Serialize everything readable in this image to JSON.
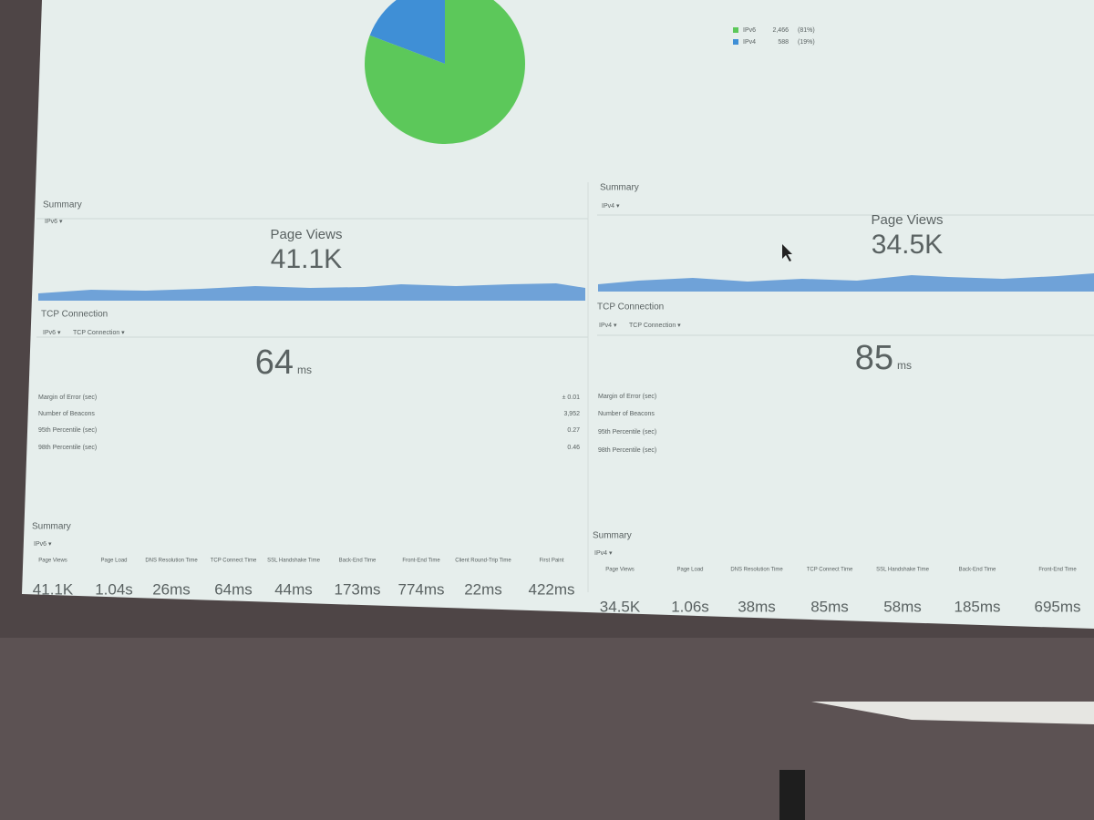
{
  "chart_data": {
    "type": "pie",
    "categories": [
      "IPv6",
      "IPv4"
    ],
    "values": [
      2466,
      588
    ],
    "value_labels": [
      "2,466",
      "588"
    ],
    "percent_labels": [
      "(81%)",
      "(19%)"
    ],
    "colors": [
      "#5cc85a",
      "#3f8fd6"
    ]
  },
  "panels": [
    {
      "summary": "Summary",
      "filter": "IPv6 ▾",
      "metric": "Page Views",
      "metric_value": "41.1K",
      "tcp_title": "TCP Connection",
      "tcp_filters": [
        "IPv6 ▾",
        "TCP Connection ▾"
      ],
      "tcp_value": "64",
      "tcp_unit": "ms",
      "stats": [
        {
          "label": "Margin of Error (sec)",
          "value": "± 0.01"
        },
        {
          "label": "Number of Beacons",
          "value": "3,952"
        },
        {
          "label": "95th Percentile (sec)",
          "value": "0.27"
        },
        {
          "label": "98th Percentile (sec)",
          "value": "0.46"
        }
      ]
    },
    {
      "summary": "Summary",
      "filter": "IPv4 ▾",
      "metric": "Page Views",
      "metric_value": "34.5K",
      "tcp_title": "TCP Connection",
      "tcp_filters": [
        "IPv4 ▾",
        "TCP Connection ▾"
      ],
      "tcp_value": "85",
      "tcp_unit": "ms",
      "stats": [
        {
          "label": "Margin of Error (sec)"
        },
        {
          "label": "Number of Beacons"
        },
        {
          "label": "95th Percentile (sec)"
        },
        {
          "label": "98th Percentile (sec)"
        }
      ]
    }
  ],
  "tables": [
    {
      "title": "Summary",
      "filter": "IPv6 ▾",
      "headers": [
        "Page Views",
        "Page Load",
        "DNS Resolution Time",
        "TCP Connect Time",
        "SSL Handshake Time",
        "Back-End Time",
        "Front-End Time",
        "Client Round-Trip Time",
        "First Paint"
      ],
      "values": [
        "41.1K",
        "1.04s",
        "26ms",
        "64ms",
        "44ms",
        "173ms",
        "774ms",
        "22ms",
        "422ms"
      ]
    },
    {
      "title": "Summary",
      "filter": "IPv4 ▾",
      "headers": [
        "Page Views",
        "Page Load",
        "DNS Resolution Time",
        "TCP Connect Time",
        "SSL Handshake Time",
        "Back-End Time",
        "Front-End Time"
      ],
      "values": [
        "34.5K",
        "1.06s",
        "38ms",
        "85ms",
        "58ms",
        "185ms",
        "695ms"
      ]
    }
  ]
}
